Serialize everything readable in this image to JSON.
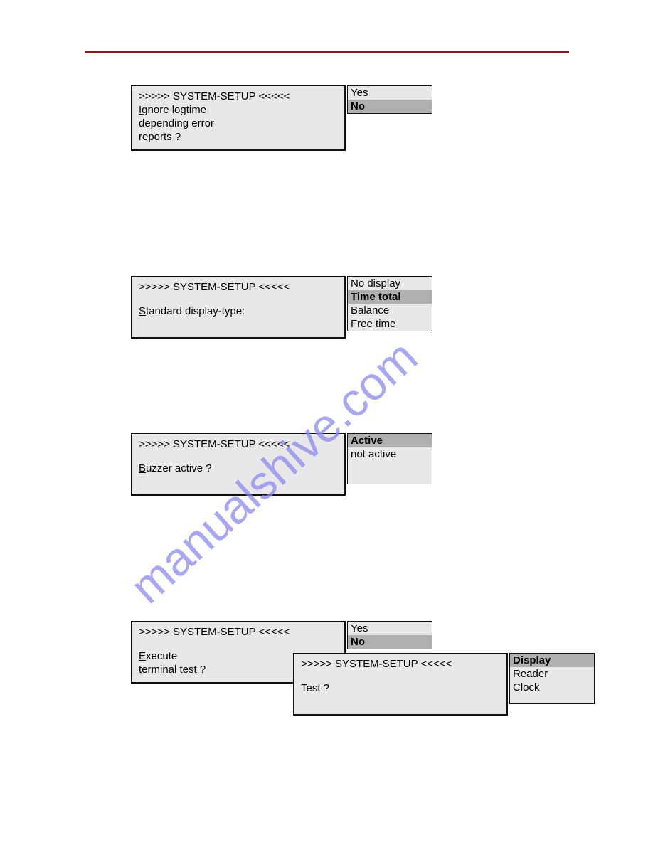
{
  "colors": {
    "page_bg": "#ffffff",
    "rule": "#c00000",
    "panel_bg": "#e8e8e8",
    "panel_border": "#111111",
    "selected_bg": "#b0b0b0",
    "text": "#000000",
    "watermark": "#8a8af0"
  },
  "watermark_text": "manualshive.com",
  "panels": [
    {
      "id": "p1",
      "title": ">>>>> SYSTEM-SETUP <<<<<",
      "body_lines": [
        "Ignore logtime",
        "depending error",
        "reports ?"
      ],
      "underline_first_char": "I",
      "options": [
        "Yes",
        "No"
      ],
      "selected_index": 1
    },
    {
      "id": "p2",
      "title": ">>>>> SYSTEM-SETUP <<<<<",
      "body_lines": [
        "Standard display-type:"
      ],
      "underline_first_char": "S",
      "options": [
        "No display",
        "Time total",
        "Balance",
        "Free time"
      ],
      "selected_index": 1
    },
    {
      "id": "p3",
      "title": ">>>>> SYSTEM-SETUP <<<<<",
      "body_lines": [
        "Buzzer active ?"
      ],
      "underline_first_char": "B",
      "options": [
        "Active",
        "not active"
      ],
      "selected_index": 0
    },
    {
      "id": "p4",
      "title": ">>>>> SYSTEM-SETUP <<<<<",
      "body_lines": [
        "Execute",
        "terminal test ?"
      ],
      "underline_first_char": "E",
      "options": [
        "Yes",
        "No"
      ],
      "selected_index": 1
    },
    {
      "id": "p5",
      "title": ">>>>> SYSTEM-SETUP <<<<<",
      "body_lines": [
        "Test ?"
      ],
      "underline_first_char": "",
      "options": [
        "Display",
        "Reader",
        "Clock"
      ],
      "selected_index": 0
    }
  ]
}
